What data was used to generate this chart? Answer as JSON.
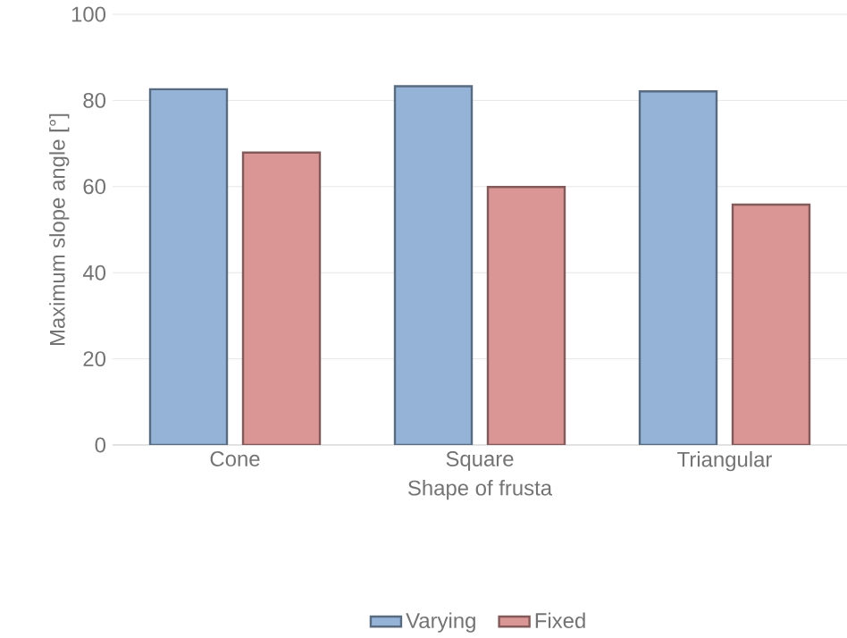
{
  "chart_data": {
    "type": "bar",
    "xlabel": "Shape of frusta",
    "ylabel": "Maximum slope angle [°]",
    "categories": [
      "Cone",
      "Square",
      "Triangular"
    ],
    "series": [
      {
        "name": "Varying",
        "color": "#95b3d7",
        "values": [
          82.6,
          83.3,
          82.1
        ]
      },
      {
        "name": "Fixed",
        "color": "#d99694",
        "values": [
          67.9,
          59.9,
          55.8
        ]
      }
    ],
    "ylim": [
      0,
      100
    ],
    "yticks": [
      0,
      20,
      40,
      60,
      80,
      100
    ],
    "grid": "y",
    "legend": "bottom"
  }
}
